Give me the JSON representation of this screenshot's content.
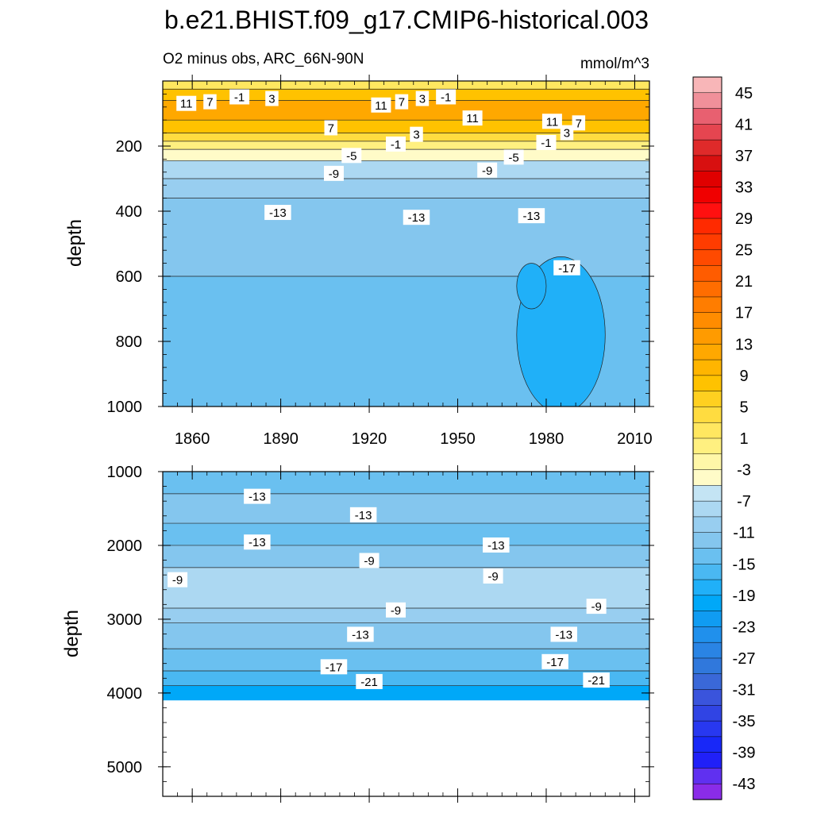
{
  "title": "b.e21.BHIST.f09_g17.CMIP6-historical.003",
  "chart_data": {
    "type": "contour",
    "title": "b.e21.BHIST.f09_g17.CMIP6-historical.003",
    "subtitle_left": "O2 minus obs, ARC_66N-90N",
    "subtitle_right": "mmol/m^3",
    "panels": [
      {
        "name": "upper",
        "ylabel": "depth",
        "xlim": [
          1850,
          2015
        ],
        "ylim": [
          0,
          1000
        ],
        "x_ticks": [
          1860,
          1890,
          1920,
          1950,
          1980,
          2010
        ],
        "y_ticks": [
          200,
          400,
          600,
          800,
          1000
        ],
        "bands": [
          {
            "top": 0,
            "bottom": 25,
            "level": 1
          },
          {
            "top": 25,
            "bottom": 60,
            "level": 7
          },
          {
            "top": 60,
            "bottom": 120,
            "level": 11
          },
          {
            "top": 120,
            "bottom": 160,
            "level": 7
          },
          {
            "top": 160,
            "bottom": 185,
            "level": 3
          },
          {
            "top": 185,
            "bottom": 210,
            "level": -1
          },
          {
            "top": 210,
            "bottom": 245,
            "level": -5
          },
          {
            "top": 245,
            "bottom": 300,
            "level": -9
          },
          {
            "top": 300,
            "bottom": 360,
            "level": -11
          },
          {
            "top": 360,
            "bottom": 600,
            "level": -13
          },
          {
            "top": 600,
            "bottom": 1000,
            "level": -15
          }
        ],
        "patches": [
          {
            "x": 1985,
            "depth": 780,
            "width": 30,
            "height": 480,
            "level": -19
          },
          {
            "x": 1975,
            "depth": 630,
            "width": 10,
            "height": 140,
            "level": -19
          }
        ],
        "contour_labels": [
          {
            "x": 1858,
            "depth": 70,
            "text": "11"
          },
          {
            "x": 1866,
            "depth": 65,
            "text": "7"
          },
          {
            "x": 1876,
            "depth": 50,
            "text": "-1"
          },
          {
            "x": 1887,
            "depth": 55,
            "text": "3"
          },
          {
            "x": 1924,
            "depth": 75,
            "text": "11"
          },
          {
            "x": 1931,
            "depth": 65,
            "text": "7"
          },
          {
            "x": 1938,
            "depth": 55,
            "text": "3"
          },
          {
            "x": 1946,
            "depth": 50,
            "text": "-1"
          },
          {
            "x": 1955,
            "depth": 115,
            "text": "11"
          },
          {
            "x": 1982,
            "depth": 125,
            "text": "11"
          },
          {
            "x": 1991,
            "depth": 130,
            "text": "7"
          },
          {
            "x": 1907,
            "depth": 145,
            "text": "7"
          },
          {
            "x": 1936,
            "depth": 165,
            "text": "3"
          },
          {
            "x": 1987,
            "depth": 160,
            "text": "3"
          },
          {
            "x": 1929,
            "depth": 195,
            "text": "-1"
          },
          {
            "x": 1980,
            "depth": 190,
            "text": "-1"
          },
          {
            "x": 1914,
            "depth": 230,
            "text": "-5"
          },
          {
            "x": 1969,
            "depth": 235,
            "text": "-5"
          },
          {
            "x": 1908,
            "depth": 285,
            "text": "-9"
          },
          {
            "x": 1960,
            "depth": 275,
            "text": "-9"
          },
          {
            "x": 1889,
            "depth": 405,
            "text": "-13"
          },
          {
            "x": 1936,
            "depth": 420,
            "text": "-13"
          },
          {
            "x": 1975,
            "depth": 415,
            "text": "-13"
          },
          {
            "x": 1987,
            "depth": 575,
            "text": "-17"
          }
        ]
      },
      {
        "name": "lower",
        "ylabel": "depth",
        "xlim": [
          1850,
          2015
        ],
        "ylim": [
          1000,
          5400
        ],
        "x_ticks": [
          1860,
          1890,
          1920,
          1950,
          1980,
          2010
        ],
        "y_ticks": [
          1000,
          2000,
          3000,
          4000,
          5000
        ],
        "bands": [
          {
            "top": 1000,
            "bottom": 1300,
            "level": -15
          },
          {
            "top": 1300,
            "bottom": 1700,
            "level": -13
          },
          {
            "top": 1700,
            "bottom": 2000,
            "level": -15
          },
          {
            "top": 2000,
            "bottom": 2300,
            "level": -13
          },
          {
            "top": 2300,
            "bottom": 2850,
            "level": -9
          },
          {
            "top": 2850,
            "bottom": 3050,
            "level": -11
          },
          {
            "top": 3050,
            "bottom": 3400,
            "level": -13
          },
          {
            "top": 3400,
            "bottom": 3700,
            "level": -15
          },
          {
            "top": 3700,
            "bottom": 3900,
            "level": -17
          },
          {
            "top": 3900,
            "bottom": 4100,
            "level": -21
          }
        ],
        "contour_labels": [
          {
            "x": 1882,
            "depth": 1340,
            "text": "-13"
          },
          {
            "x": 1918,
            "depth": 1590,
            "text": "-13"
          },
          {
            "x": 1882,
            "depth": 1960,
            "text": "-13"
          },
          {
            "x": 1963,
            "depth": 2000,
            "text": "-13"
          },
          {
            "x": 1855,
            "depth": 2470,
            "text": "-9"
          },
          {
            "x": 1920,
            "depth": 2210,
            "text": "-9"
          },
          {
            "x": 1962,
            "depth": 2420,
            "text": "-9"
          },
          {
            "x": 1929,
            "depth": 2880,
            "text": "-9"
          },
          {
            "x": 1997,
            "depth": 2830,
            "text": "-9"
          },
          {
            "x": 1917,
            "depth": 3210,
            "text": "-13"
          },
          {
            "x": 1986,
            "depth": 3210,
            "text": "-13"
          },
          {
            "x": 1908,
            "depth": 3650,
            "text": "-17"
          },
          {
            "x": 1983,
            "depth": 3580,
            "text": "-17"
          },
          {
            "x": 1920,
            "depth": 3850,
            "text": "-21"
          },
          {
            "x": 1997,
            "depth": 3830,
            "text": "-21"
          }
        ]
      }
    ],
    "colorbar": {
      "levels": [
        -45,
        -43,
        -41,
        -39,
        -37,
        -35,
        -33,
        -31,
        -29,
        -27,
        -25,
        -23,
        -21,
        -19,
        -17,
        -15,
        -13,
        -11,
        -9,
        -7,
        -5,
        -3,
        -1,
        1,
        3,
        5,
        7,
        9,
        11,
        13,
        15,
        17,
        19,
        21,
        23,
        25,
        27,
        29,
        31,
        33,
        35,
        37,
        39,
        41,
        43,
        45
      ],
      "labels": [
        45,
        41,
        37,
        33,
        29,
        25,
        21,
        17,
        13,
        9,
        5,
        1,
        -3,
        -7,
        -11,
        -15,
        -19,
        -23,
        -27,
        -31,
        -35,
        -39,
        -43
      ],
      "colors": [
        "#f8b6b8",
        "#f0909a",
        "#e86070",
        "#e54550",
        "#df2a2a",
        "#d81010",
        "#e00000",
        "#f00000",
        "#ff1010",
        "#ff2a00",
        "#ff3c00",
        "#ff4a00",
        "#ff5c00",
        "#ff6d00",
        "#ff7d00",
        "#ff8c00",
        "#ff9b00",
        "#ffa800",
        "#ffb500",
        "#ffc200",
        "#ffd020",
        "#ffdc40",
        "#ffe760",
        "#fff080",
        "#fff7a8",
        "#fffbc8",
        "#c4e4f4",
        "#acd8f2",
        "#98cef0",
        "#84c6ee",
        "#6ac0f0",
        "#4ab8f2",
        "#20b0f8",
        "#00a8f8",
        "#109cf2",
        "#2090ec",
        "#2a84e4",
        "#3078dc",
        "#3a68d8",
        "#3a54dc",
        "#3044e4",
        "#2838f0",
        "#1828f8",
        "#2020f8",
        "#6030f0",
        "#8a2ce8"
      ]
    }
  }
}
